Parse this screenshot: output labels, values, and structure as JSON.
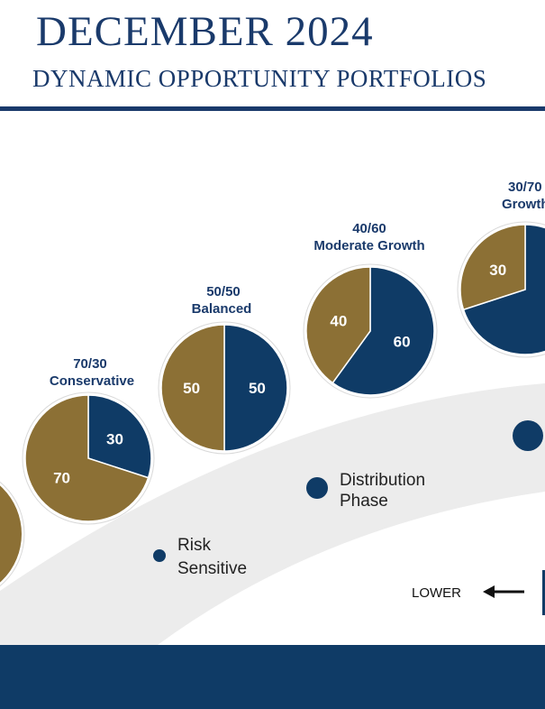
{
  "header": {
    "title": "DECEMBER 2024",
    "subtitle": "DYNAMIC OPPORTUNITY PORTFOLIOS"
  },
  "colors": {
    "navy": "#0f3b66",
    "gold": "#8c7035",
    "band": "#ececec",
    "text": "#1a3a6b"
  },
  "chart_data": {
    "type": "pie",
    "pies": [
      {
        "ratio": "",
        "name": "",
        "slices": [
          {
            "label": "",
            "value": 70,
            "color": "gold"
          }
        ]
      },
      {
        "ratio": "70/30",
        "name": "Conservative",
        "slices": [
          {
            "label": "30",
            "value": 30,
            "color": "navy"
          },
          {
            "label": "70",
            "value": 70,
            "color": "gold"
          }
        ]
      },
      {
        "ratio": "50/50",
        "name": "Balanced",
        "slices": [
          {
            "label": "50",
            "value": 50,
            "color": "navy"
          },
          {
            "label": "50",
            "value": 50,
            "color": "gold"
          }
        ]
      },
      {
        "ratio": "40/60",
        "name": "Moderate Growth",
        "slices": [
          {
            "label": "60",
            "value": 60,
            "color": "navy"
          },
          {
            "label": "40",
            "value": 40,
            "color": "gold"
          }
        ]
      },
      {
        "ratio": "30/70",
        "name": "Growth",
        "slices": [
          {
            "label": "",
            "value": 70,
            "color": "navy"
          },
          {
            "label": "30",
            "value": 30,
            "color": "gold"
          }
        ]
      }
    ],
    "points": [
      {
        "label_lines": [
          "Risk",
          "Sensitive"
        ]
      },
      {
        "label_lines": [
          "Distribution",
          "Phase"
        ]
      },
      {
        "label_lines": []
      }
    ],
    "axis": {
      "lower_label": "LOWER"
    }
  }
}
